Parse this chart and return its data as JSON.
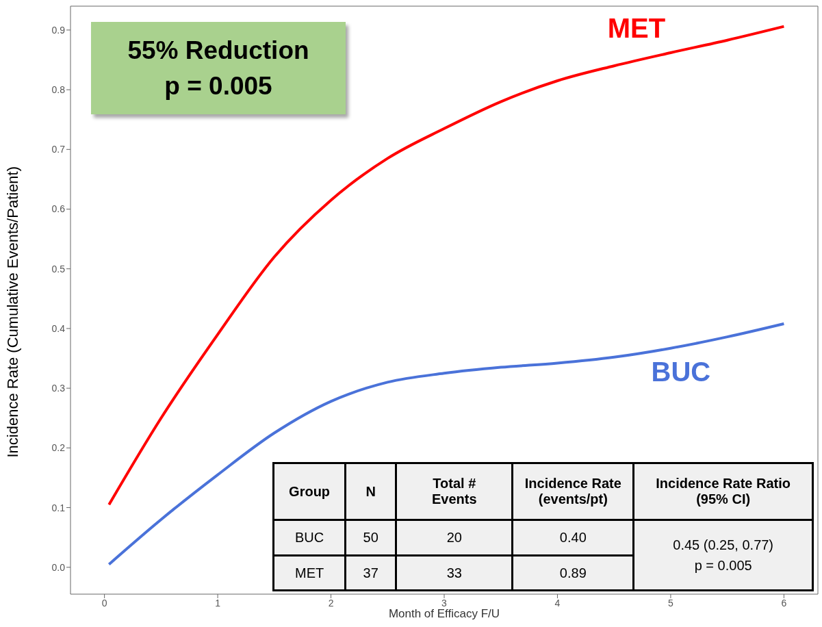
{
  "chart_data": {
    "type": "line",
    "xlabel": "Month of Efficacy F/U",
    "ylabel": "Incidence Rate (Cumulative Events/Patient)",
    "x": [
      0.04,
      0.5,
      1,
      1.5,
      2,
      2.5,
      3,
      3.5,
      4,
      4.5,
      5,
      5.5,
      6
    ],
    "series": [
      {
        "name": "MET",
        "color": "#ff0000",
        "values": [
          0.105,
          0.25,
          0.39,
          0.52,
          0.615,
          0.685,
          0.735,
          0.78,
          0.815,
          0.84,
          0.862,
          0.883,
          0.906
        ]
      },
      {
        "name": "BUC",
        "color": "#4a72d9",
        "values": [
          0.005,
          0.08,
          0.155,
          0.225,
          0.278,
          0.31,
          0.325,
          0.335,
          0.342,
          0.352,
          0.367,
          0.386,
          0.408
        ]
      }
    ],
    "xlim": [
      -0.3,
      6.3
    ],
    "xticks": [
      0,
      1,
      2,
      3,
      4,
      5,
      6
    ],
    "ylim": [
      -0.045,
      0.94
    ],
    "yticks": [
      {
        "value": 0,
        "label": "0.0"
      },
      {
        "value": 0.1,
        "label": "0.1"
      },
      {
        "value": 0.2,
        "label": "0.2"
      },
      {
        "value": 0.3,
        "label": "0.3"
      },
      {
        "value": 0.4,
        "label": "0.4"
      },
      {
        "value": 0.5,
        "label": "0.5"
      },
      {
        "value": 0.6,
        "label": "0.6"
      },
      {
        "value": 0.7,
        "label": "0.7"
      },
      {
        "value": 0.8,
        "label": "0.8"
      },
      {
        "value": 0.9,
        "label": "0.9"
      }
    ],
    "grid": false,
    "legend": false,
    "marker": "none",
    "line_style": "solid",
    "annotations": [
      "55% Reduction",
      "p = 0.005",
      "Group",
      "N",
      "Total # Events",
      "Incidence Rate (events/pt)",
      "Incidence Rate Ratio (95% CI)",
      "BUC",
      "50",
      "20",
      "0.40",
      "MET",
      "37",
      "33",
      "0.89",
      "0.45 (0.25, 0.77)",
      "p = 0.005"
    ]
  }
}
